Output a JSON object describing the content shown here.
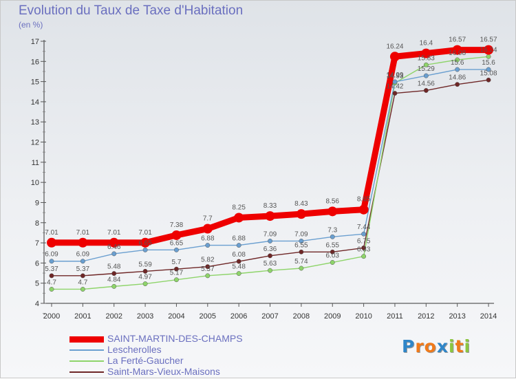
{
  "header": {
    "title": "Evolution du Taux de Taxe d'Habitation",
    "unit": "(en %)"
  },
  "logo": {
    "letters": [
      {
        "ch": "P",
        "color": "#2f86c8"
      },
      {
        "ch": "r",
        "color": "#f07a1a"
      },
      {
        "ch": "o",
        "color": "#f07a1a"
      },
      {
        "ch": "x",
        "color": "#2f86c8"
      },
      {
        "ch": "i",
        "color": "#8cc63f"
      },
      {
        "ch": "t",
        "color": "#f07a1a"
      },
      {
        "ch": "i",
        "color": "#8cc63f"
      }
    ]
  },
  "chart_data": {
    "type": "line",
    "title": "Evolution du Taux de Taxe d'Habitation",
    "ylabel": "(en %)",
    "xlabel": "",
    "ylim": [
      4,
      17
    ],
    "yticks": [
      4,
      5,
      6,
      7,
      8,
      9,
      10,
      11,
      12,
      13,
      14,
      15,
      16,
      17
    ],
    "grid": false,
    "legend_position": "bottom-left",
    "x": [
      "2000",
      "2001",
      "2002",
      "2003",
      "2004",
      "2005",
      "2006",
      "2007",
      "2008",
      "2009",
      "2010",
      "2011",
      "2012",
      "2013",
      "2014"
    ],
    "series": [
      {
        "name": "SAINT-MARTIN-DES-CHAMPS",
        "color": "#ee0000",
        "values": [
          7.01,
          7.01,
          7.01,
          7.01,
          7.38,
          7.7,
          8.25,
          8.33,
          8.43,
          8.56,
          8.65,
          16.24,
          16.4,
          16.57,
          16.57
        ]
      },
      {
        "name": "Lescherolles",
        "color": "#6a9fd0",
        "values": [
          6.09,
          6.09,
          6.46,
          6.65,
          6.65,
          6.88,
          6.88,
          7.09,
          7.09,
          7.3,
          7.44,
          14.99,
          15.29,
          15.6,
          15.6
        ]
      },
      {
        "name": "La Ferté-Gaucher",
        "color": "#8ed46a",
        "values": [
          4.7,
          4.7,
          4.84,
          4.97,
          5.17,
          5.37,
          5.48,
          5.63,
          5.74,
          6.03,
          6.33,
          14.93,
          15.83,
          16.08,
          16.24
        ]
      },
      {
        "name": "Saint-Mars-Vieux-Maisons",
        "color": "#6e2626",
        "values": [
          5.37,
          5.37,
          5.48,
          5.59,
          5.7,
          5.82,
          6.08,
          6.36,
          6.55,
          6.55,
          6.75,
          14.42,
          14.56,
          14.86,
          15.08
        ]
      }
    ]
  }
}
